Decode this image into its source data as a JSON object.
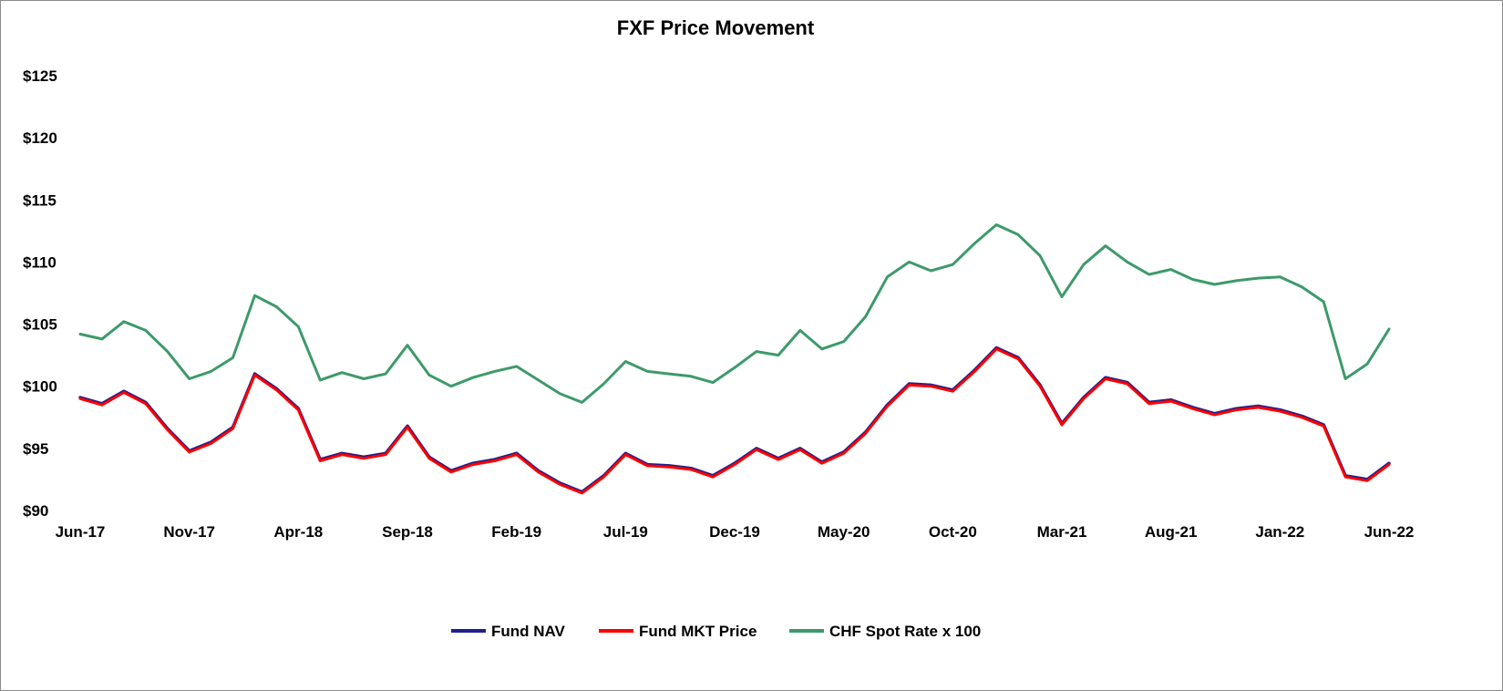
{
  "chart_data": {
    "type": "line",
    "title": "FXF Price Movement",
    "xlabel": "",
    "ylabel": "",
    "ylim": [
      90,
      125
    ],
    "y_ticks": [
      90,
      95,
      100,
      105,
      110,
      115,
      120,
      125
    ],
    "y_tick_labels": [
      "$90",
      "$95",
      "$100",
      "$105",
      "$110",
      "$115",
      "$120",
      "$125"
    ],
    "x_range": [
      "2017-06",
      "2022-06"
    ],
    "x_ticks": [
      "2017-06",
      "2017-11",
      "2018-04",
      "2018-09",
      "2019-02",
      "2019-07",
      "2019-12",
      "2020-05",
      "2020-10",
      "2021-03",
      "2021-08",
      "2022-01",
      "2022-06"
    ],
    "x_tick_labels": [
      "Jun-17",
      "Nov-17",
      "Apr-18",
      "Sep-18",
      "Feb-19",
      "Jul-19",
      "Dec-19",
      "May-20",
      "Oct-20",
      "Mar-21",
      "Aug-21",
      "Jan-22",
      "Jun-22"
    ],
    "grid": false,
    "legend_position": "bottom",
    "x": [
      "2017-06",
      "2017-07",
      "2017-08",
      "2017-09",
      "2017-10",
      "2017-11",
      "2017-12",
      "2018-01",
      "2018-02",
      "2018-03",
      "2018-04",
      "2018-05",
      "2018-06",
      "2018-07",
      "2018-08",
      "2018-09",
      "2018-10",
      "2018-11",
      "2018-12",
      "2019-01",
      "2019-02",
      "2019-03",
      "2019-04",
      "2019-05",
      "2019-06",
      "2019-07",
      "2019-08",
      "2019-09",
      "2019-10",
      "2019-11",
      "2019-12",
      "2020-01",
      "2020-02",
      "2020-03",
      "2020-04",
      "2020-05",
      "2020-06",
      "2020-07",
      "2020-08",
      "2020-09",
      "2020-10",
      "2020-11",
      "2020-12",
      "2021-01",
      "2021-02",
      "2021-03",
      "2021-04",
      "2021-05",
      "2021-06",
      "2021-07",
      "2021-08",
      "2021-09",
      "2021-10",
      "2021-11",
      "2021-12",
      "2022-01",
      "2022-02",
      "2022-03",
      "2022-04",
      "2022-05",
      "2022-06"
    ],
    "series": [
      {
        "name": "Fund NAV",
        "color": "#1f1f8f",
        "values": [
          99.1,
          98.6,
          99.6,
          98.7,
          96.6,
          94.8,
          95.5,
          96.7,
          101.0,
          99.8,
          98.2,
          94.1,
          94.6,
          94.3,
          94.6,
          96.8,
          94.3,
          93.2,
          93.8,
          94.1,
          94.6,
          93.2,
          92.2,
          91.5,
          92.8,
          94.6,
          93.7,
          93.6,
          93.4,
          92.8,
          93.8,
          95.0,
          94.2,
          95.0,
          93.9,
          94.7,
          96.3,
          98.5,
          100.2,
          100.1,
          99.7,
          101.3,
          103.1,
          102.3,
          100.1,
          97.0,
          99.1,
          100.7,
          100.3,
          98.7,
          98.9,
          98.3,
          97.8,
          98.2,
          98.4,
          98.1,
          97.6,
          96.9,
          92.8,
          92.5,
          93.8
        ]
      },
      {
        "name": "Fund MKT Price",
        "color": "#ff0000",
        "values": [
          99.0,
          98.5,
          99.5,
          98.6,
          96.5,
          94.7,
          95.4,
          96.6,
          100.9,
          99.7,
          98.1,
          94.0,
          94.5,
          94.2,
          94.5,
          96.7,
          94.2,
          93.1,
          93.7,
          94.0,
          94.5,
          93.1,
          92.1,
          91.4,
          92.7,
          94.5,
          93.6,
          93.5,
          93.3,
          92.7,
          93.7,
          94.9,
          94.1,
          94.9,
          93.8,
          94.6,
          96.2,
          98.4,
          100.1,
          100.0,
          99.6,
          101.2,
          103.0,
          102.2,
          100.0,
          96.9,
          99.0,
          100.6,
          100.2,
          98.6,
          98.8,
          98.2,
          97.7,
          98.1,
          98.3,
          98.0,
          97.5,
          96.8,
          92.7,
          92.4,
          93.7
        ]
      },
      {
        "name": "CHF Spot Rate x 100",
        "color": "#3d9a6a",
        "values": [
          104.2,
          103.8,
          105.2,
          104.5,
          102.8,
          100.6,
          101.2,
          102.3,
          107.3,
          106.4,
          104.8,
          100.5,
          101.1,
          100.6,
          101.0,
          103.3,
          100.9,
          100.0,
          100.7,
          101.2,
          101.6,
          100.5,
          99.4,
          98.7,
          100.2,
          102.0,
          101.2,
          101.0,
          100.8,
          100.3,
          101.5,
          102.8,
          102.5,
          104.5,
          103.0,
          103.6,
          105.6,
          108.8,
          110.0,
          109.3,
          109.8,
          111.5,
          113.0,
          112.2,
          110.5,
          107.2,
          109.8,
          111.3,
          110.0,
          109.0,
          109.4,
          108.6,
          108.2,
          108.5,
          108.7,
          108.8,
          108.0,
          106.8,
          100.6,
          101.8,
          104.6
        ]
      }
    ]
  }
}
